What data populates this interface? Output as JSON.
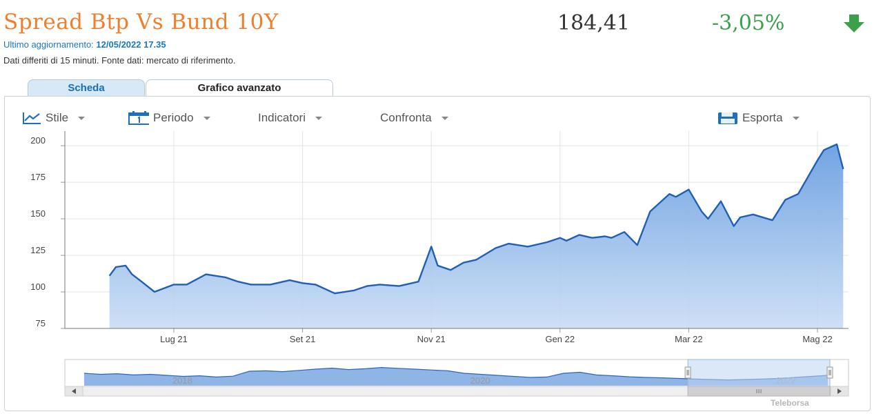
{
  "header": {
    "title": "Spread Btp Vs Bund 10Y",
    "price": "184,41",
    "change": "-3,05%",
    "updated_label": "Ultimo aggiornamento:",
    "updated_value": "12/05/2022 17.35",
    "delay_note": "Dati differiti di 15 minuti.  Fonte dati: mercato di riferimento.",
    "change_color": "#3aa04a",
    "title_color": "#ef7f2d"
  },
  "tabs": [
    {
      "label": "Scheda",
      "active": false
    },
    {
      "label": "Grafico avanzato",
      "active": true
    }
  ],
  "toolbar": {
    "stile": "Stile",
    "periodo": "Periodo",
    "indicatori": "Indicatori",
    "confronta": "Confronta",
    "esporta": "Esporta"
  },
  "watermark": "Teleborsa",
  "chart_data": {
    "type": "area",
    "color": "#1f5fb5",
    "ylim": [
      75,
      210
    ],
    "yticks": [
      75,
      100,
      125,
      150,
      175,
      200
    ],
    "xticks": [
      {
        "label": "Lug 21",
        "t": 1.0
      },
      {
        "label": "Set 21",
        "t": 3.0
      },
      {
        "label": "Nov 21",
        "t": 5.0
      },
      {
        "label": "Gen 22",
        "t": 7.0
      },
      {
        "label": "Mar 22",
        "t": 9.0
      },
      {
        "label": "Mag 22",
        "t": 11.0
      }
    ],
    "x": [
      0.0,
      0.1,
      0.25,
      0.35,
      0.5,
      0.7,
      1.0,
      1.2,
      1.5,
      1.8,
      2.0,
      2.2,
      2.5,
      2.8,
      3.0,
      3.2,
      3.5,
      3.8,
      4.0,
      4.2,
      4.5,
      4.8,
      5.0,
      5.1,
      5.3,
      5.5,
      5.7,
      6.0,
      6.2,
      6.5,
      6.8,
      7.0,
      7.1,
      7.3,
      7.5,
      7.7,
      7.8,
      8.0,
      8.2,
      8.4,
      8.7,
      8.8,
      9.0,
      9.2,
      9.3,
      9.5,
      9.7,
      9.8,
      10.0,
      10.3,
      10.5,
      10.7,
      11.0,
      11.1,
      11.3,
      11.4
    ],
    "y": [
      111,
      117,
      118,
      112,
      107,
      100,
      105,
      105,
      112,
      110,
      107,
      105,
      105,
      108,
      106,
      105,
      99,
      101,
      104,
      105,
      104,
      107,
      131,
      118,
      115,
      120,
      122,
      130,
      133,
      131,
      134,
      137,
      135,
      139,
      137,
      138,
      137,
      141,
      132,
      155,
      167,
      165,
      170,
      155,
      150,
      162,
      145,
      151,
      153,
      149,
      163,
      167,
      190,
      197,
      201,
      184
    ],
    "navigator": {
      "labels": [
        {
          "label": "2018",
          "t": 0.15
        },
        {
          "label": "2020",
          "t": 0.53
        },
        {
          "label": "2022",
          "t": 0.92
        }
      ],
      "window": [
        0.795,
        1.0
      ]
    }
  }
}
